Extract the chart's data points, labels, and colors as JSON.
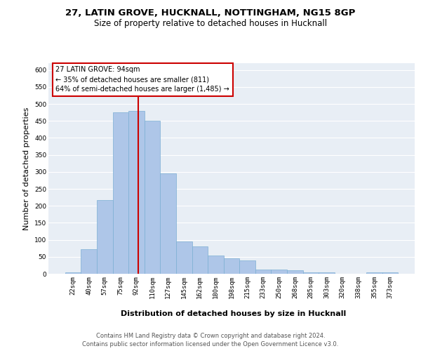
{
  "title1": "27, LATIN GROVE, HUCKNALL, NOTTINGHAM, NG15 8GP",
  "title2": "Size of property relative to detached houses in Hucknall",
  "xlabel": "Distribution of detached houses by size in Hucknall",
  "ylabel": "Number of detached properties",
  "categories": [
    "22sqm",
    "40sqm",
    "57sqm",
    "75sqm",
    "92sqm",
    "110sqm",
    "127sqm",
    "145sqm",
    "162sqm",
    "180sqm",
    "198sqm",
    "215sqm",
    "233sqm",
    "250sqm",
    "268sqm",
    "285sqm",
    "303sqm",
    "320sqm",
    "338sqm",
    "355sqm",
    "373sqm"
  ],
  "values": [
    5,
    72,
    218,
    475,
    480,
    450,
    295,
    96,
    80,
    54,
    46,
    40,
    13,
    13,
    10,
    5,
    5,
    0,
    0,
    5,
    5
  ],
  "bar_color": "#aec6e8",
  "bar_edge_color": "#7bafd4",
  "vline_color": "#cc0000",
  "annotation_text": "27 LATIN GROVE: 94sqm\n← 35% of detached houses are smaller (811)\n64% of semi-detached houses are larger (1,485) →",
  "annotation_box_color": "#ffffff",
  "annotation_box_edge": "#cc0000",
  "ylim": [
    0,
    620
  ],
  "yticks": [
    0,
    50,
    100,
    150,
    200,
    250,
    300,
    350,
    400,
    450,
    500,
    550,
    600
  ],
  "background_color": "#e8eef5",
  "grid_color": "#ffffff",
  "footer_line1": "Contains HM Land Registry data © Crown copyright and database right 2024.",
  "footer_line2": "Contains public sector information licensed under the Open Government Licence v3.0.",
  "title1_fontsize": 9.5,
  "title2_fontsize": 8.5,
  "xlabel_fontsize": 8,
  "ylabel_fontsize": 8,
  "tick_fontsize": 6.5,
  "footer_fontsize": 6,
  "annotation_fontsize": 7
}
